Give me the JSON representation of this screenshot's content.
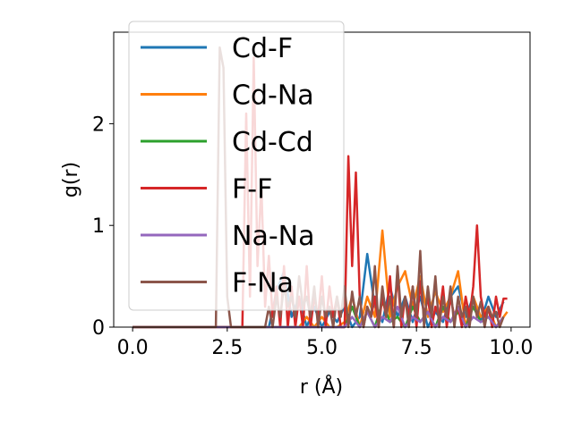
{
  "chart_data": {
    "type": "line",
    "xlabel": "r (Å)",
    "ylabel": "g(r)",
    "xlim": [
      -0.5,
      10.5
    ],
    "ylim": [
      0,
      2.9
    ],
    "xticks": [
      "0.0",
      "2.5",
      "5.0",
      "7.5",
      "10.0"
    ],
    "xtick_values": [
      0,
      2.5,
      5,
      7.5,
      10
    ],
    "yticks": [
      "0",
      "1",
      "2"
    ],
    "ytick_values": [
      0,
      1,
      2
    ],
    "grid": false,
    "legend_position": "upper-left",
    "series": [
      {
        "name": "Cd-F",
        "color": "#1f77b4",
        "x": [
          0,
          2.0,
          3.6,
          3.8,
          4.0,
          4.2,
          4.4,
          4.6,
          4.8,
          5.0,
          5.2,
          5.4,
          5.6,
          5.8,
          6.0,
          6.2,
          6.4,
          6.6,
          6.8,
          7.0,
          7.2,
          7.4,
          7.6,
          7.8,
          8.0,
          8.2,
          8.4,
          8.6,
          8.8,
          9.0,
          9.2,
          9.4,
          9.6,
          9.8
        ],
        "y": [
          0,
          0,
          0,
          0.35,
          0.55,
          0.1,
          0.3,
          0.0,
          0.2,
          0.0,
          0.15,
          0.05,
          0.2,
          0.0,
          0.1,
          0.72,
          0.2,
          0.05,
          0.4,
          0.1,
          0.3,
          0.05,
          0.3,
          0.0,
          0.15,
          0.05,
          0.3,
          0.4,
          0.1,
          0.3,
          0.05,
          0.3,
          0.1,
          0.25
        ]
      },
      {
        "name": "Cd-Na",
        "color": "#ff7f0e",
        "x": [
          0,
          4.4,
          4.6,
          4.8,
          5.0,
          5.2,
          5.4,
          5.6,
          5.8,
          6.0,
          6.2,
          6.4,
          6.6,
          6.8,
          7.0,
          7.2,
          7.4,
          7.6,
          7.8,
          8.0,
          8.2,
          8.4,
          8.6,
          8.8,
          9.0,
          9.2,
          9.4,
          9.6,
          9.8,
          9.9
        ],
        "y": [
          0,
          0,
          0.1,
          0.0,
          0.1,
          0.0,
          0.0,
          0.05,
          0.3,
          0.0,
          0.3,
          0.1,
          0.95,
          0.1,
          0.4,
          0.55,
          0.2,
          0.5,
          0.1,
          0.35,
          0.15,
          0.3,
          0.55,
          0.0,
          0.3,
          0.1,
          0.2,
          0.0,
          0.1,
          0.15
        ]
      },
      {
        "name": "Cd-Cd",
        "color": "#2ca02c",
        "x": [
          0,
          5.6,
          5.8,
          6.0,
          6.2,
          6.4,
          6.6,
          6.8,
          7.0,
          7.2,
          7.4,
          7.6,
          7.8,
          8.0,
          8.2,
          8.4,
          8.6,
          8.8,
          9.0,
          9.2,
          9.4,
          9.6,
          9.8
        ],
        "y": [
          0,
          0,
          0.2,
          0.0,
          0.15,
          0.0,
          0.25,
          0.05,
          0.1,
          0.0,
          0.2,
          0.05,
          0.15,
          0.0,
          0.2,
          0.05,
          0.15,
          0.0,
          0.2,
          0.05,
          0.1,
          0.0,
          0.1
        ]
      },
      {
        "name": "F-F",
        "color": "#d62728",
        "x": [
          0,
          2.0,
          2.1,
          2.2,
          2.3,
          2.4,
          2.5,
          2.6,
          2.7,
          2.8,
          2.9,
          3.0,
          3.1,
          3.2,
          3.3,
          3.4,
          3.5,
          3.6,
          3.7,
          3.8,
          3.9,
          4.0,
          4.1,
          4.2,
          4.3,
          4.4,
          4.5,
          4.6,
          4.7,
          4.8,
          4.9,
          5.0,
          5.1,
          5.2,
          5.3,
          5.4,
          5.5,
          5.6,
          5.7,
          5.8,
          5.9,
          6.0,
          6.1,
          6.2,
          6.3,
          6.4,
          6.5,
          6.6,
          6.7,
          6.8,
          6.9,
          7.0,
          7.1,
          7.2,
          7.3,
          7.4,
          7.5,
          7.6,
          7.7,
          7.8,
          7.9,
          8.0,
          8.1,
          8.2,
          8.3,
          8.4,
          8.5,
          8.6,
          8.7,
          8.8,
          8.9,
          9.0,
          9.1,
          9.2,
          9.3,
          9.4,
          9.5,
          9.6,
          9.7,
          9.8,
          9.9
        ],
        "y": [
          0,
          0,
          0,
          0,
          0,
          0,
          0,
          0,
          0,
          0,
          0,
          2.1,
          0.3,
          2.65,
          0.6,
          1.4,
          0.2,
          0.7,
          0.1,
          0.4,
          0.0,
          0.6,
          0.0,
          0.4,
          0.0,
          0.3,
          0.0,
          0.6,
          0.0,
          0.3,
          0.1,
          0.5,
          0.0,
          0.4,
          0.1,
          0.3,
          0.0,
          0.0,
          1.68,
          0.6,
          1.52,
          0.3,
          0.0,
          0.2,
          0.1,
          0.3,
          0.0,
          0.3,
          0.1,
          0.5,
          0.0,
          0.55,
          0.0,
          0.3,
          0.1,
          0.4,
          0.0,
          0.45,
          0.1,
          0.3,
          0.0,
          0.2,
          0.1,
          0.4,
          0.0,
          0.3,
          0.1,
          0.2,
          0.0,
          0.3,
          0.1,
          0.4,
          1.0,
          0.3,
          0.1,
          0.2,
          0.0,
          0.3,
          0.1,
          0.28,
          0.28
        ]
      },
      {
        "name": "Na-Na",
        "color": "#9467bd",
        "x": [
          0,
          5.6,
          5.8,
          6.0,
          6.2,
          6.4,
          6.6,
          6.8,
          7.0,
          7.2,
          7.4,
          7.6,
          7.8,
          8.0,
          8.2,
          8.4,
          8.6,
          8.8,
          9.0,
          9.2,
          9.4,
          9.6,
          9.8
        ],
        "y": [
          0,
          0,
          0.1,
          0.0,
          0.15,
          0.0,
          0.1,
          0.05,
          0.2,
          0.0,
          0.1,
          0.05,
          0.15,
          0.0,
          0.1,
          0.05,
          0.2,
          0.0,
          0.1,
          0.05,
          0.1,
          0.0,
          0.1
        ]
      },
      {
        "name": "F-Na",
        "color": "#8c564b",
        "x": [
          0,
          2.0,
          2.1,
          2.2,
          2.3,
          2.4,
          2.5,
          2.6,
          2.7,
          2.8,
          2.9,
          3.0,
          3.1,
          3.2,
          3.3,
          3.4,
          3.5,
          3.6,
          3.7,
          3.8,
          3.9,
          4.0,
          4.1,
          4.2,
          4.3,
          4.4,
          4.5,
          4.6,
          4.7,
          4.8,
          4.9,
          5.0,
          5.1,
          5.2,
          5.3,
          5.4,
          5.5,
          5.6,
          5.7,
          5.8,
          5.9,
          6.0,
          6.1,
          6.2,
          6.3,
          6.4,
          6.5,
          6.6,
          6.7,
          6.8,
          6.9,
          7.0,
          7.1,
          7.2,
          7.3,
          7.4,
          7.5,
          7.6,
          7.7,
          7.8,
          7.9,
          8.0,
          8.1,
          8.2,
          8.3,
          8.4,
          8.5,
          8.6,
          8.7,
          8.8,
          8.9,
          9.0,
          9.1,
          9.2,
          9.3,
          9.4,
          9.5,
          9.6,
          9.7,
          9.8
        ],
        "y": [
          0,
          0,
          0,
          0,
          2.75,
          2.55,
          0.3,
          0.0,
          0.0,
          0.0,
          0.0,
          0.0,
          0.0,
          0.0,
          0.0,
          0.0,
          0.0,
          0.2,
          0.0,
          0.3,
          0.1,
          0.4,
          0.2,
          0.3,
          0.1,
          0.5,
          0.2,
          0.3,
          0.1,
          0.4,
          0.0,
          0.3,
          0.1,
          0.2,
          0.0,
          0.3,
          0.1,
          0.4,
          0.0,
          0.35,
          0.1,
          0.3,
          0.0,
          0.2,
          0.1,
          0.6,
          0.0,
          0.4,
          0.1,
          0.3,
          0.0,
          0.6,
          0.1,
          0.3,
          0.0,
          0.4,
          0.1,
          0.75,
          0.0,
          0.4,
          0.1,
          0.5,
          0.0,
          0.3,
          0.1,
          0.4,
          0.0,
          0.3,
          0.1,
          0.2,
          0.0,
          0.3,
          0.1,
          0.25,
          0.0,
          0.2,
          0.1,
          0.15,
          0.0,
          0.1
        ]
      }
    ]
  }
}
